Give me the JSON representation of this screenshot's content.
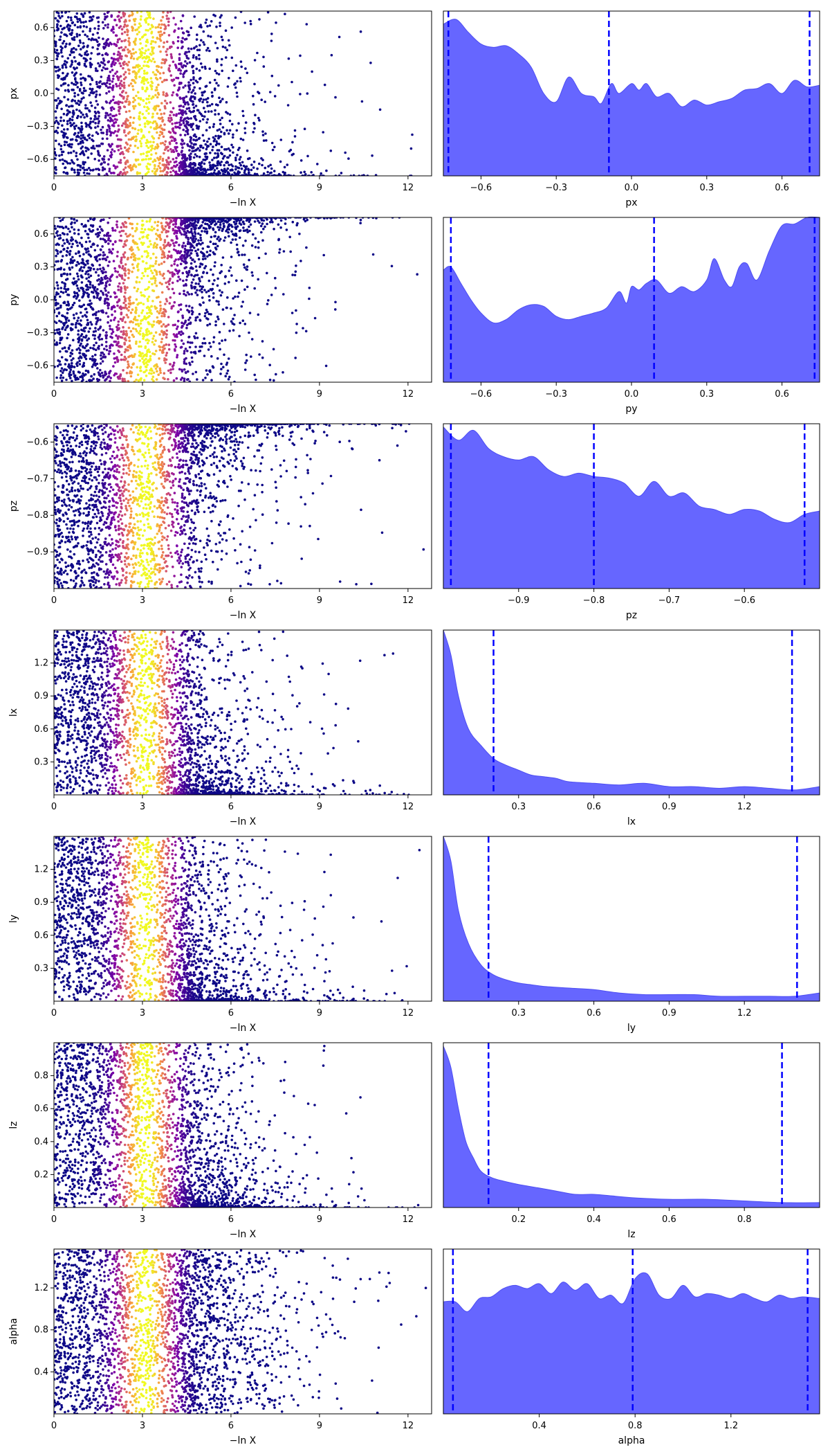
{
  "colors": {
    "kde_fill": "#6666ff",
    "kde_line": "#4d4df2",
    "quantile_line": "#0000ff",
    "scatter_colormap": "plasma",
    "background": "#ffffff"
  },
  "chart_data": [
    {
      "type": "scatter",
      "param": "px",
      "xlabel": "−ln X",
      "ylabel": "px",
      "xlim": [
        0,
        12.8
      ],
      "ylim": [
        -0.75,
        0.75
      ],
      "xticks": [
        "0",
        "3",
        "6",
        "9",
        "12"
      ],
      "yticks": [
        "0.6",
        "0.3",
        "0.0",
        "-0.3",
        "-0.6"
      ],
      "shape": "bottom_right",
      "max_x": 12.7,
      "color_peak_lnx": 3.1
    },
    {
      "type": "area",
      "param": "px",
      "xlabel": "px",
      "xlim": [
        -0.75,
        0.75
      ],
      "xticks": [
        "-0.6",
        "-0.3",
        "0.0",
        "0.3",
        "0.6"
      ],
      "density": [
        [
          -0.75,
          0.92
        ],
        [
          -0.7,
          0.95
        ],
        [
          -0.65,
          0.87
        ],
        [
          -0.6,
          0.8
        ],
        [
          -0.55,
          0.78
        ],
        [
          -0.5,
          0.79
        ],
        [
          -0.45,
          0.74
        ],
        [
          -0.4,
          0.66
        ],
        [
          -0.35,
          0.5
        ],
        [
          -0.3,
          0.45
        ],
        [
          -0.25,
          0.6
        ],
        [
          -0.2,
          0.5
        ],
        [
          -0.15,
          0.48
        ],
        [
          -0.12,
          0.44
        ],
        [
          -0.08,
          0.56
        ],
        [
          -0.05,
          0.5
        ],
        [
          0.0,
          0.56
        ],
        [
          0.03,
          0.52
        ],
        [
          0.06,
          0.56
        ],
        [
          0.1,
          0.48
        ],
        [
          0.15,
          0.5
        ],
        [
          0.2,
          0.42
        ],
        [
          0.25,
          0.46
        ],
        [
          0.3,
          0.43
        ],
        [
          0.35,
          0.45
        ],
        [
          0.4,
          0.47
        ],
        [
          0.45,
          0.52
        ],
        [
          0.5,
          0.53
        ],
        [
          0.55,
          0.56
        ],
        [
          0.6,
          0.5
        ],
        [
          0.65,
          0.58
        ],
        [
          0.7,
          0.54
        ],
        [
          0.75,
          0.55
        ]
      ],
      "quantiles": [
        -0.73,
        -0.09,
        0.71
      ]
    },
    {
      "type": "scatter",
      "param": "py",
      "xlabel": "−ln X",
      "ylabel": "py",
      "xlim": [
        0,
        12.8
      ],
      "ylim": [
        -0.75,
        0.75
      ],
      "xticks": [
        "0",
        "3",
        "6",
        "9",
        "12"
      ],
      "yticks": [
        "0.6",
        "0.3",
        "0.0",
        "-0.3",
        "-0.6"
      ],
      "shape": "top_right",
      "max_x": 12.7,
      "color_peak_lnx": 3.1
    },
    {
      "type": "area",
      "param": "py",
      "xlabel": "py",
      "xlim": [
        -0.75,
        0.75
      ],
      "xticks": [
        "-0.6",
        "-0.3",
        "0.0",
        "0.3",
        "0.6"
      ],
      "density": [
        [
          -0.75,
          0.68
        ],
        [
          -0.72,
          0.7
        ],
        [
          -0.68,
          0.6
        ],
        [
          -0.64,
          0.5
        ],
        [
          -0.6,
          0.42
        ],
        [
          -0.55,
          0.36
        ],
        [
          -0.5,
          0.38
        ],
        [
          -0.45,
          0.44
        ],
        [
          -0.4,
          0.47
        ],
        [
          -0.35,
          0.46
        ],
        [
          -0.3,
          0.4
        ],
        [
          -0.25,
          0.38
        ],
        [
          -0.2,
          0.4
        ],
        [
          -0.15,
          0.42
        ],
        [
          -0.1,
          0.45
        ],
        [
          -0.05,
          0.55
        ],
        [
          -0.02,
          0.48
        ],
        [
          0.0,
          0.58
        ],
        [
          0.03,
          0.56
        ],
        [
          0.06,
          0.6
        ],
        [
          0.1,
          0.62
        ],
        [
          0.15,
          0.54
        ],
        [
          0.2,
          0.58
        ],
        [
          0.25,
          0.55
        ],
        [
          0.3,
          0.62
        ],
        [
          0.33,
          0.75
        ],
        [
          0.37,
          0.62
        ],
        [
          0.4,
          0.58
        ],
        [
          0.43,
          0.7
        ],
        [
          0.46,
          0.72
        ],
        [
          0.5,
          0.62
        ],
        [
          0.55,
          0.8
        ],
        [
          0.6,
          0.95
        ],
        [
          0.65,
          0.96
        ],
        [
          0.7,
          1.0
        ],
        [
          0.75,
          1.0
        ]
      ],
      "quantiles": [
        -0.72,
        0.09,
        0.73
      ]
    },
    {
      "type": "scatter",
      "param": "pz",
      "xlabel": "−ln X",
      "ylabel": "pz",
      "xlim": [
        0,
        12.8
      ],
      "ylim": [
        -1.0,
        -0.55
      ],
      "xticks": [
        "0",
        "3",
        "6",
        "9",
        "12"
      ],
      "yticks": [
        "-0.6",
        "-0.7",
        "-0.8",
        "-0.9"
      ],
      "shape": "top_right",
      "max_x": 12.7,
      "color_peak_lnx": 3.1
    },
    {
      "type": "area",
      "param": "pz",
      "xlabel": "pz",
      "xlim": [
        -1.0,
        -0.5
      ],
      "xticks": [
        "-0.9",
        "-0.8",
        "-0.7",
        "-0.6"
      ],
      "density": [
        [
          -1.0,
          0.98
        ],
        [
          -0.98,
          0.9
        ],
        [
          -0.96,
          0.96
        ],
        [
          -0.94,
          0.85
        ],
        [
          -0.92,
          0.8
        ],
        [
          -0.9,
          0.78
        ],
        [
          -0.88,
          0.8
        ],
        [
          -0.86,
          0.72
        ],
        [
          -0.84,
          0.68
        ],
        [
          -0.82,
          0.7
        ],
        [
          -0.8,
          0.68
        ],
        [
          -0.78,
          0.67
        ],
        [
          -0.76,
          0.64
        ],
        [
          -0.74,
          0.56
        ],
        [
          -0.72,
          0.65
        ],
        [
          -0.7,
          0.56
        ],
        [
          -0.68,
          0.58
        ],
        [
          -0.66,
          0.5
        ],
        [
          -0.64,
          0.48
        ],
        [
          -0.62,
          0.45
        ],
        [
          -0.6,
          0.48
        ],
        [
          -0.58,
          0.47
        ],
        [
          -0.56,
          0.42
        ],
        [
          -0.54,
          0.4
        ],
        [
          -0.52,
          0.45
        ],
        [
          -0.5,
          0.47
        ]
      ],
      "quantiles": [
        -0.99,
        -0.8,
        -0.52
      ]
    },
    {
      "type": "scatter",
      "param": "lx",
      "xlabel": "−ln X",
      "ylabel": "lx",
      "xlim": [
        0,
        12.8
      ],
      "ylim": [
        0,
        1.5
      ],
      "xticks": [
        "0",
        "3",
        "6",
        "9",
        "12"
      ],
      "yticks": [
        "1.2",
        "0.9",
        "0.6",
        "0.3"
      ],
      "shape": "bottom_decay",
      "max_x": 12.7,
      "color_peak_lnx": 3.1
    },
    {
      "type": "area",
      "param": "lx",
      "xlabel": "lx",
      "xlim": [
        0,
        1.5
      ],
      "xticks": [
        "0.3",
        "0.6",
        "0.9",
        "1.2"
      ],
      "density": [
        [
          0.0,
          1.0
        ],
        [
          0.03,
          0.85
        ],
        [
          0.06,
          0.6
        ],
        [
          0.1,
          0.4
        ],
        [
          0.15,
          0.3
        ],
        [
          0.2,
          0.22
        ],
        [
          0.25,
          0.18
        ],
        [
          0.3,
          0.15
        ],
        [
          0.35,
          0.12
        ],
        [
          0.4,
          0.11
        ],
        [
          0.45,
          0.1
        ],
        [
          0.5,
          0.08
        ],
        [
          0.6,
          0.07
        ],
        [
          0.7,
          0.06
        ],
        [
          0.8,
          0.07
        ],
        [
          0.9,
          0.05
        ],
        [
          1.0,
          0.05
        ],
        [
          1.1,
          0.04
        ],
        [
          1.2,
          0.05
        ],
        [
          1.3,
          0.04
        ],
        [
          1.4,
          0.03
        ],
        [
          1.5,
          0.05
        ]
      ],
      "quantiles": [
        0.2,
        1.39
      ]
    },
    {
      "type": "scatter",
      "param": "ly",
      "xlabel": "−ln X",
      "ylabel": "ly",
      "xlim": [
        0,
        12.8
      ],
      "ylim": [
        0,
        1.5
      ],
      "xticks": [
        "0",
        "3",
        "6",
        "9",
        "12"
      ],
      "yticks": [
        "1.2",
        "0.9",
        "0.6",
        "0.3"
      ],
      "shape": "bottom_decay",
      "max_x": 12.7,
      "color_peak_lnx": 3.1
    },
    {
      "type": "area",
      "param": "ly",
      "xlabel": "ly",
      "xlim": [
        0,
        1.5
      ],
      "xticks": [
        "0.3",
        "0.6",
        "0.9",
        "1.2"
      ],
      "density": [
        [
          0.0,
          1.0
        ],
        [
          0.03,
          0.85
        ],
        [
          0.06,
          0.55
        ],
        [
          0.1,
          0.35
        ],
        [
          0.15,
          0.22
        ],
        [
          0.2,
          0.16
        ],
        [
          0.25,
          0.13
        ],
        [
          0.3,
          0.11
        ],
        [
          0.35,
          0.1
        ],
        [
          0.4,
          0.09
        ],
        [
          0.5,
          0.08
        ],
        [
          0.6,
          0.07
        ],
        [
          0.7,
          0.05
        ],
        [
          0.8,
          0.04
        ],
        [
          0.9,
          0.04
        ],
        [
          1.0,
          0.04
        ],
        [
          1.1,
          0.03
        ],
        [
          1.2,
          0.03
        ],
        [
          1.3,
          0.03
        ],
        [
          1.4,
          0.03
        ],
        [
          1.5,
          0.05
        ]
      ],
      "quantiles": [
        0.18,
        1.41
      ]
    },
    {
      "type": "scatter",
      "param": "lz",
      "xlabel": "−ln X",
      "ylabel": "lz",
      "xlim": [
        0,
        12.8
      ],
      "ylim": [
        0,
        1.0
      ],
      "xticks": [
        "0",
        "3",
        "6",
        "9",
        "12"
      ],
      "yticks": [
        "0.8",
        "0.6",
        "0.4",
        "0.2"
      ],
      "shape": "bottom_decay",
      "max_x": 12.7,
      "color_peak_lnx": 3.1
    },
    {
      "type": "area",
      "param": "lz",
      "xlabel": "lz",
      "xlim": [
        0,
        1.0
      ],
      "xticks": [
        "0.2",
        "0.4",
        "0.6",
        "0.8"
      ],
      "density": [
        [
          0.0,
          0.98
        ],
        [
          0.02,
          0.85
        ],
        [
          0.04,
          0.6
        ],
        [
          0.06,
          0.4
        ],
        [
          0.08,
          0.3
        ],
        [
          0.1,
          0.22
        ],
        [
          0.13,
          0.18
        ],
        [
          0.16,
          0.16
        ],
        [
          0.2,
          0.14
        ],
        [
          0.25,
          0.12
        ],
        [
          0.3,
          0.1
        ],
        [
          0.35,
          0.08
        ],
        [
          0.4,
          0.08
        ],
        [
          0.45,
          0.07
        ],
        [
          0.5,
          0.06
        ],
        [
          0.6,
          0.05
        ],
        [
          0.7,
          0.05
        ],
        [
          0.8,
          0.04
        ],
        [
          0.9,
          0.03
        ],
        [
          1.0,
          0.03
        ]
      ],
      "quantiles": [
        0.12,
        0.9
      ]
    },
    {
      "type": "scatter",
      "param": "alpha",
      "xlabel": "−ln X",
      "ylabel": "alpha",
      "xlim": [
        0,
        12.8
      ],
      "ylim": [
        0,
        1.57
      ],
      "xticks": [
        "0",
        "3",
        "6",
        "9",
        "12"
      ],
      "yticks": [
        "1.2",
        "0.8",
        "0.4"
      ],
      "shape": "uniform_tail",
      "max_x": 12.7,
      "color_peak_lnx": 3.1
    },
    {
      "type": "area",
      "param": "alpha",
      "xlabel": "alpha",
      "xlim": [
        0,
        1.57
      ],
      "xticks": [
        "0.4",
        "0.8",
        "1.2"
      ],
      "density": [
        [
          0.0,
          0.68
        ],
        [
          0.05,
          0.68
        ],
        [
          0.1,
          0.62
        ],
        [
          0.15,
          0.7
        ],
        [
          0.2,
          0.71
        ],
        [
          0.25,
          0.76
        ],
        [
          0.3,
          0.78
        ],
        [
          0.35,
          0.76
        ],
        [
          0.4,
          0.79
        ],
        [
          0.45,
          0.73
        ],
        [
          0.5,
          0.8
        ],
        [
          0.55,
          0.75
        ],
        [
          0.6,
          0.79
        ],
        [
          0.65,
          0.7
        ],
        [
          0.7,
          0.72
        ],
        [
          0.75,
          0.67
        ],
        [
          0.8,
          0.82
        ],
        [
          0.85,
          0.85
        ],
        [
          0.9,
          0.72
        ],
        [
          0.95,
          0.7
        ],
        [
          1.0,
          0.78
        ],
        [
          1.05,
          0.71
        ],
        [
          1.1,
          0.73
        ],
        [
          1.15,
          0.72
        ],
        [
          1.2,
          0.7
        ],
        [
          1.25,
          0.73
        ],
        [
          1.3,
          0.7
        ],
        [
          1.35,
          0.68
        ],
        [
          1.4,
          0.72
        ],
        [
          1.45,
          0.7
        ],
        [
          1.5,
          0.71
        ],
        [
          1.57,
          0.7
        ]
      ],
      "quantiles": [
        0.04,
        0.79,
        1.52
      ]
    }
  ]
}
